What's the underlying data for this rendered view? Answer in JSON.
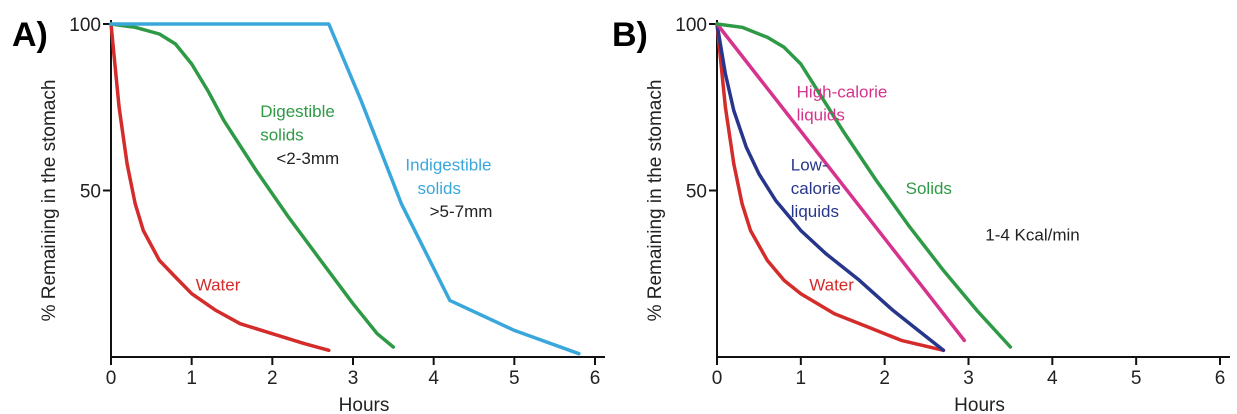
{
  "colors": {
    "red": "#d42b2b",
    "green": "#2e9a45",
    "blue": "#3aa7dc",
    "magenta": "#d6338c",
    "navy": "#27368a",
    "black": "#222222"
  },
  "chart_data": [
    {
      "type": "line",
      "panel_label": "A)",
      "xlabel": "Hours",
      "ylabel": "% Remaining in the stomach",
      "xlim": [
        0,
        6
      ],
      "ylim": [
        0,
        100
      ],
      "xticks": [
        "0",
        "1",
        "2",
        "3",
        "4",
        "5",
        "6"
      ],
      "yticks": [
        "50",
        "100"
      ],
      "ytick_values": [
        50,
        100
      ],
      "grid": false,
      "series": [
        {
          "name": "Water",
          "color": "red",
          "x": [
            0,
            0.1,
            0.2,
            0.3,
            0.4,
            0.6,
            0.8,
            1.0,
            1.3,
            1.6,
            2.0,
            2.4,
            2.7
          ],
          "y": [
            100,
            75,
            58,
            46,
            38,
            29,
            24,
            19,
            14,
            10,
            7,
            4,
            2
          ]
        },
        {
          "name": "Digestible solids",
          "color": "green",
          "x": [
            0,
            0.3,
            0.6,
            0.8,
            1.0,
            1.2,
            1.4,
            1.8,
            2.2,
            2.6,
            3.0,
            3.3,
            3.5
          ],
          "y": [
            100,
            99,
            97,
            94,
            88,
            80,
            71,
            56,
            42,
            29,
            16,
            7,
            3
          ]
        },
        {
          "name": "Indigestible solids",
          "color": "blue",
          "x": [
            0,
            2.7,
            3.1,
            3.6,
            4.2,
            5.0,
            5.8
          ],
          "y": [
            100,
            100,
            77,
            46,
            17,
            8,
            1
          ]
        }
      ],
      "annotations": [
        {
          "text": "Digestible",
          "color": "green",
          "x": 1.85,
          "y": 72
        },
        {
          "text": "solids",
          "color": "green",
          "x": 1.85,
          "y": 65
        },
        {
          "text": "<2-3mm",
          "color": "black",
          "x": 2.05,
          "y": 58
        },
        {
          "text": "Indigestible",
          "color": "blue",
          "x": 3.65,
          "y": 56
        },
        {
          "text": "solids",
          "color": "blue",
          "x": 3.8,
          "y": 49
        },
        {
          "text": ">5-7mm",
          "color": "black",
          "x": 3.95,
          "y": 42
        },
        {
          "text": "Water",
          "color": "red",
          "x": 1.05,
          "y": 20
        }
      ]
    },
    {
      "type": "line",
      "panel_label": "B)",
      "xlabel": "Hours",
      "ylabel": "% Remaining in the stomach",
      "xlim": [
        0,
        6
      ],
      "ylim": [
        0,
        100
      ],
      "xticks": [
        "0",
        "1",
        "2",
        "3",
        "4",
        "5",
        "6"
      ],
      "yticks": [
        "50",
        "100"
      ],
      "ytick_values": [
        50,
        100
      ],
      "grid": false,
      "series": [
        {
          "name": "Water",
          "color": "red",
          "x": [
            0,
            0.1,
            0.2,
            0.3,
            0.4,
            0.6,
            0.8,
            1.0,
            1.4,
            1.8,
            2.2,
            2.7
          ],
          "y": [
            100,
            75,
            58,
            46,
            38,
            29,
            23,
            19,
            13,
            9,
            5,
            2
          ]
        },
        {
          "name": "Low-calorie liquids",
          "color": "navy",
          "x": [
            0,
            0.1,
            0.2,
            0.35,
            0.5,
            0.7,
            1.0,
            1.3,
            1.7,
            2.1,
            2.4,
            2.7
          ],
          "y": [
            100,
            85,
            74,
            63,
            55,
            47,
            38,
            31,
            23,
            14,
            8,
            2
          ]
        },
        {
          "name": "High-calorie liquids",
          "color": "magenta",
          "x": [
            0,
            2.95
          ],
          "y": [
            100,
            5
          ]
        },
        {
          "name": "Solids",
          "color": "green",
          "x": [
            0,
            0.3,
            0.6,
            0.8,
            1.0,
            1.2,
            1.5,
            1.9,
            2.3,
            2.7,
            3.1,
            3.5
          ],
          "y": [
            100,
            99,
            96,
            93,
            88,
            80,
            68,
            53,
            39,
            26,
            14,
            3
          ]
        }
      ],
      "annotations": [
        {
          "text": "High-calorie",
          "color": "magenta",
          "x": 0.95,
          "y": 78
        },
        {
          "text": "liquids",
          "color": "magenta",
          "x": 0.95,
          "y": 71
        },
        {
          "text": "Low-",
          "color": "navy",
          "x": 0.88,
          "y": 56
        },
        {
          "text": "calorie",
          "color": "navy",
          "x": 0.88,
          "y": 49
        },
        {
          "text": "liquids",
          "color": "navy",
          "x": 0.88,
          "y": 42
        },
        {
          "text": "Solids",
          "color": "green",
          "x": 2.25,
          "y": 49
        },
        {
          "text": "1-4 Kcal/min",
          "color": "black",
          "x": 3.2,
          "y": 35
        },
        {
          "text": "Water",
          "color": "red",
          "x": 1.1,
          "y": 20
        }
      ]
    }
  ]
}
